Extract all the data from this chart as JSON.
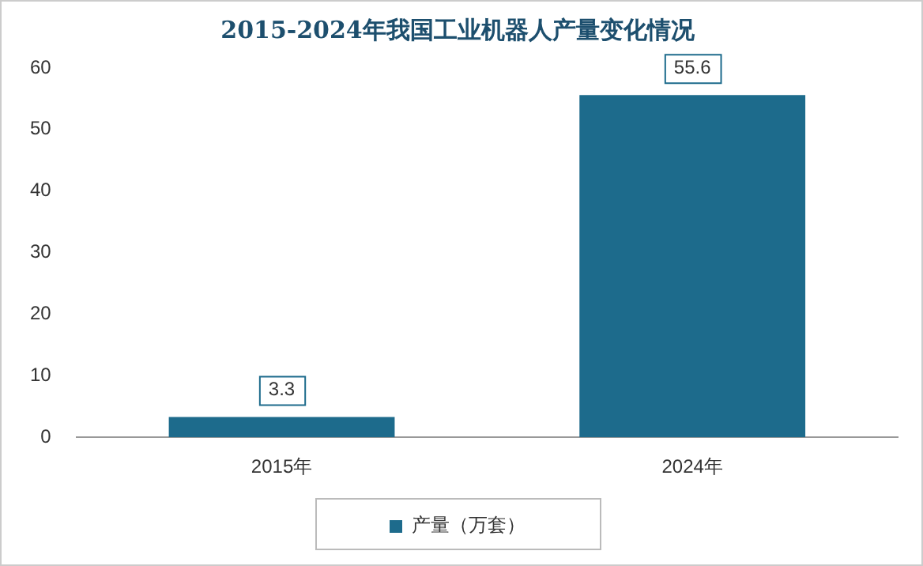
{
  "chart_data": {
    "type": "bar",
    "title": "2015-2024年我国工业机器人产量变化情况",
    "categories": [
      "2015年",
      "2024年"
    ],
    "series": [
      {
        "name": "产量（万套）",
        "color": "#1d6b8c",
        "values": [
          3.3,
          55.6
        ]
      }
    ],
    "ylim": [
      0,
      60
    ],
    "yticks": [
      0,
      10,
      20,
      30,
      40,
      50,
      60
    ],
    "grid": false,
    "legend": "bottom",
    "data_labels": true
  }
}
